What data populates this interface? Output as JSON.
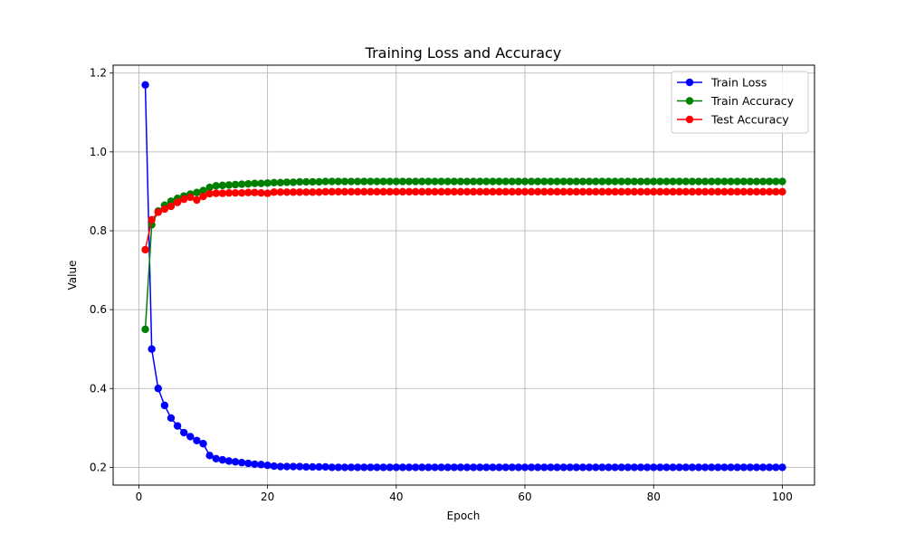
{
  "chart_data": {
    "type": "line",
    "title": "Training Loss and Accuracy",
    "xlabel": "Epoch",
    "ylabel": "Value",
    "xlim": [
      -4,
      105
    ],
    "ylim": [
      0.155,
      1.22
    ],
    "xticks": [
      0,
      20,
      40,
      60,
      80,
      100
    ],
    "yticks": [
      0.2,
      0.4,
      0.6,
      0.8,
      1.0,
      1.2
    ],
    "ytick_labels": [
      "0.2",
      "0.4",
      "0.6",
      "0.8",
      "1.0",
      "1.2"
    ],
    "grid": true,
    "legend_position": "top-right",
    "x_start": 1,
    "series": [
      {
        "name": "Train Loss",
        "color": "#0000ff",
        "values": [
          1.17,
          0.5,
          0.4,
          0.357,
          0.325,
          0.305,
          0.288,
          0.278,
          0.268,
          0.26,
          0.23,
          0.222,
          0.219,
          0.216,
          0.214,
          0.212,
          0.21,
          0.208,
          0.207,
          0.205,
          0.203,
          0.202,
          0.202,
          0.202,
          0.202,
          0.201,
          0.201,
          0.201,
          0.201,
          0.2,
          0.2,
          0.2,
          0.2,
          0.2,
          0.2,
          0.2,
          0.2,
          0.2,
          0.2,
          0.2,
          0.2,
          0.2,
          0.2,
          0.2,
          0.2,
          0.2,
          0.2,
          0.2,
          0.2,
          0.2,
          0.2,
          0.2,
          0.2,
          0.2,
          0.2,
          0.2,
          0.2,
          0.2,
          0.2,
          0.2,
          0.2,
          0.2,
          0.2,
          0.2,
          0.2,
          0.2,
          0.2,
          0.2,
          0.2,
          0.2,
          0.2,
          0.2,
          0.2,
          0.2,
          0.2,
          0.2,
          0.2,
          0.2,
          0.2,
          0.2,
          0.2,
          0.2,
          0.2,
          0.2,
          0.2,
          0.2,
          0.2,
          0.2,
          0.2,
          0.2,
          0.2,
          0.2,
          0.2,
          0.2,
          0.2,
          0.2,
          0.2,
          0.2,
          0.2,
          0.2
        ]
      },
      {
        "name": "Train Accuracy",
        "color": "#008000",
        "values": [
          0.55,
          0.815,
          0.85,
          0.865,
          0.875,
          0.882,
          0.888,
          0.893,
          0.897,
          0.902,
          0.91,
          0.914,
          0.915,
          0.916,
          0.917,
          0.918,
          0.919,
          0.92,
          0.92,
          0.921,
          0.922,
          0.922,
          0.923,
          0.923,
          0.924,
          0.924,
          0.924,
          0.924,
          0.925,
          0.925,
          0.925,
          0.925,
          0.925,
          0.925,
          0.925,
          0.925,
          0.925,
          0.925,
          0.925,
          0.925,
          0.925,
          0.925,
          0.925,
          0.925,
          0.925,
          0.925,
          0.925,
          0.925,
          0.925,
          0.925,
          0.925,
          0.925,
          0.925,
          0.925,
          0.925,
          0.925,
          0.925,
          0.925,
          0.925,
          0.925,
          0.925,
          0.925,
          0.925,
          0.925,
          0.925,
          0.925,
          0.925,
          0.925,
          0.925,
          0.925,
          0.925,
          0.925,
          0.925,
          0.925,
          0.925,
          0.925,
          0.925,
          0.925,
          0.925,
          0.925,
          0.925,
          0.925,
          0.925,
          0.925,
          0.925,
          0.925,
          0.925,
          0.925,
          0.925,
          0.925,
          0.925,
          0.925,
          0.925,
          0.925,
          0.925,
          0.925,
          0.925,
          0.925,
          0.925,
          0.925
        ]
      },
      {
        "name": "Test Accuracy",
        "color": "#ff0000",
        "values": [
          0.752,
          0.828,
          0.847,
          0.855,
          0.862,
          0.872,
          0.88,
          0.885,
          0.878,
          0.887,
          0.894,
          0.895,
          0.895,
          0.896,
          0.896,
          0.896,
          0.897,
          0.897,
          0.896,
          0.895,
          0.898,
          0.898,
          0.898,
          0.898,
          0.898,
          0.898,
          0.898,
          0.898,
          0.899,
          0.899,
          0.899,
          0.899,
          0.899,
          0.899,
          0.899,
          0.899,
          0.899,
          0.899,
          0.899,
          0.899,
          0.899,
          0.899,
          0.899,
          0.899,
          0.899,
          0.899,
          0.899,
          0.899,
          0.899,
          0.899,
          0.899,
          0.899,
          0.899,
          0.899,
          0.899,
          0.899,
          0.899,
          0.899,
          0.899,
          0.899,
          0.899,
          0.899,
          0.899,
          0.899,
          0.899,
          0.899,
          0.899,
          0.899,
          0.899,
          0.899,
          0.899,
          0.899,
          0.899,
          0.899,
          0.899,
          0.899,
          0.899,
          0.899,
          0.899,
          0.899,
          0.899,
          0.899,
          0.899,
          0.899,
          0.899,
          0.899,
          0.899,
          0.899,
          0.899,
          0.899,
          0.899,
          0.899,
          0.899,
          0.899,
          0.899,
          0.899,
          0.899,
          0.899,
          0.899,
          0.899
        ]
      }
    ]
  }
}
